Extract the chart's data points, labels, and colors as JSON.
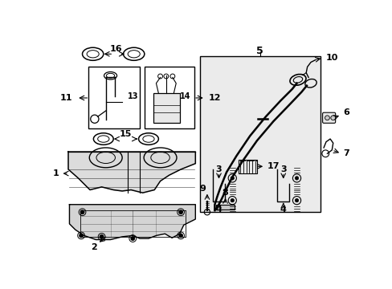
{
  "bg_color": "#ffffff",
  "line_color": "#000000",
  "light_gray": "#c8c8c8",
  "lighter_gray": "#e8e8e8",
  "tank_fill": "#dcdcdc",
  "shield_fill": "#d4d4d4"
}
